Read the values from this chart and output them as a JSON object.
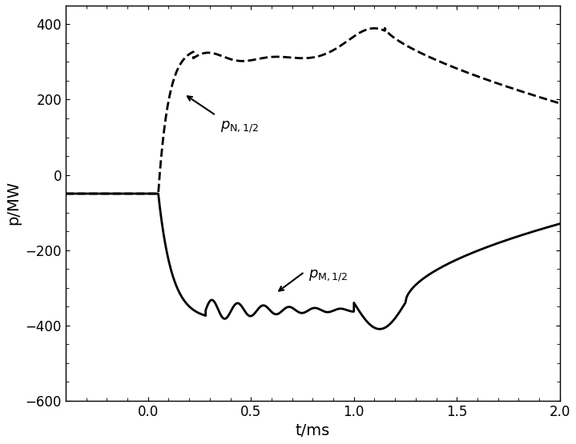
{
  "title": "",
  "xlabel": "t/ms",
  "ylabel": "p/MW",
  "xlim": [
    -0.4,
    2.0
  ],
  "ylim": [
    -600,
    450
  ],
  "yticks": [
    -600,
    -400,
    -200,
    0,
    200,
    400
  ],
  "xticks": [
    0,
    0.5,
    1.0,
    1.5,
    2.0
  ],
  "background_color": "#ffffff",
  "line_color": "#000000"
}
